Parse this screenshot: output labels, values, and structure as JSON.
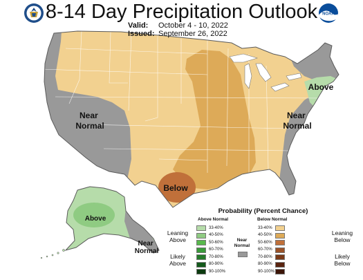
{
  "header": {
    "title": "8-14 Day Precipitation Outlook",
    "valid_label": "Valid:",
    "valid_value": "October 4 - 10, 2022",
    "issued_label": "Issued:",
    "issued_value": "September 26, 2022",
    "left_logo": "department-of-commerce-seal-icon",
    "right_logo": "noaa-logo-icon",
    "right_logo_text": "NOAA"
  },
  "map": {
    "regions": [
      {
        "label": "Near\nNormal",
        "category": "near-normal",
        "area": "West (Great Basin / California)"
      },
      {
        "label": "Near\nNormal",
        "category": "near-normal",
        "area": "Southeast / Atlantic coast"
      },
      {
        "label": "Above",
        "category": "leaning-above",
        "area": "New England"
      },
      {
        "label": "Below",
        "category": "likely-below 50-60%",
        "area": "Central Texas"
      },
      {
        "label": "Above",
        "category": "leaning-above 40-50%",
        "area": "Alaska interior"
      },
      {
        "label": "Near\nNormal",
        "category": "near-normal",
        "area": "Alaska panhandle"
      }
    ],
    "colors": {
      "near_normal": "#999999",
      "below_33_40": "#f2d190",
      "below_40_50": "#ddaa58",
      "below_50_60": "#c0703a",
      "above_33_40": "#b6dcaa",
      "above_40_50": "#8fcb82",
      "outline": "#ffffff",
      "coast": "#5a5a5a"
    }
  },
  "legend": {
    "title": "Probability (Percent Chance)",
    "above_title": "Above Normal",
    "below_title": "Below Normal",
    "near_title": "Near\nNormal",
    "leaning_above": "Leaning\nAbove",
    "likely_above": "Likely\nAbove",
    "leaning_below": "Leaning\nBelow",
    "likely_below": "Likely\nBelow",
    "near_color": "#999999",
    "above": [
      {
        "range": "33-40%",
        "color": "#b6dcaa"
      },
      {
        "range": "40-50%",
        "color": "#8fcb82"
      },
      {
        "range": "50-60%",
        "color": "#58b84c"
      },
      {
        "range": "60-70%",
        "color": "#3a9a3a"
      },
      {
        "range": "70-80%",
        "color": "#257a2a"
      },
      {
        "range": "80-90%",
        "color": "#145a1c"
      },
      {
        "range": "90-100%",
        "color": "#0b3a0f"
      }
    ],
    "below": [
      {
        "range": "33-40%",
        "color": "#f2d190"
      },
      {
        "range": "40-50%",
        "color": "#ddaa58"
      },
      {
        "range": "50-60%",
        "color": "#c0703a"
      },
      {
        "range": "60-70%",
        "color": "#9a5228"
      },
      {
        "range": "70-80%",
        "color": "#7a3a18"
      },
      {
        "range": "80-90%",
        "color": "#5a2410"
      },
      {
        "range": "90-100%",
        "color": "#3c1508"
      }
    ]
  }
}
